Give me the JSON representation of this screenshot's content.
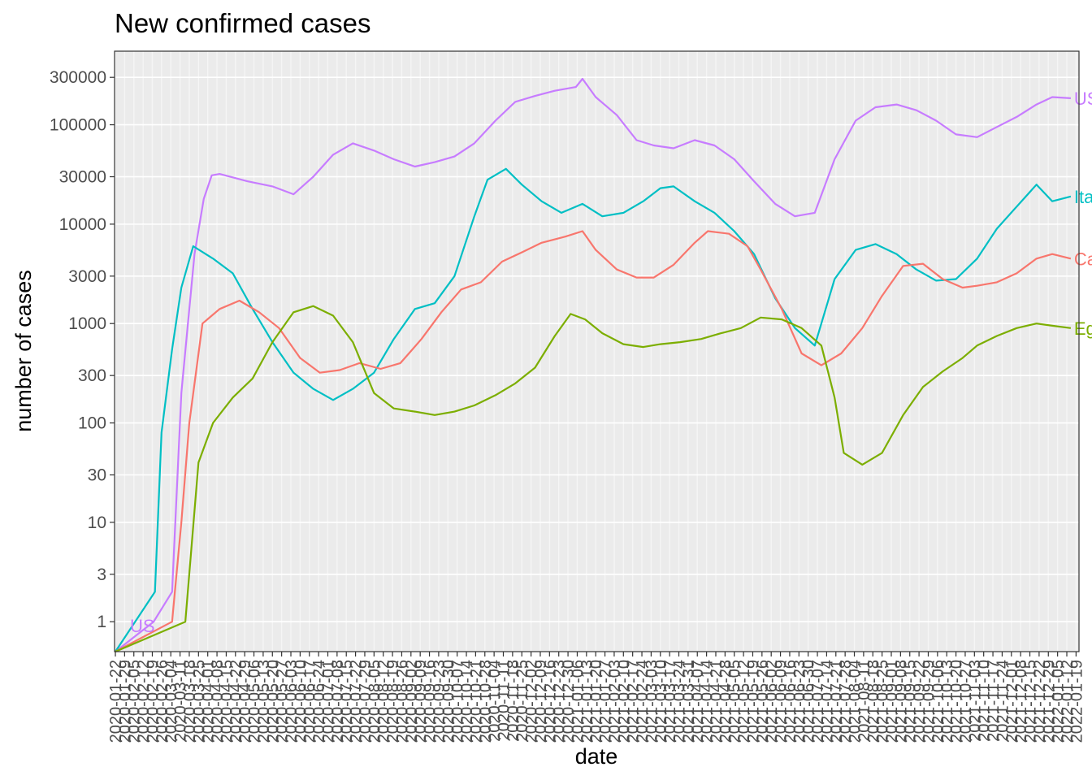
{
  "chart_data": {
    "type": "line",
    "title": "New confirmed cases",
    "xlabel": "date",
    "ylabel": "number of cases",
    "y_scale": "log10",
    "ylim": [
      0.5,
      550000
    ],
    "y_ticks": [
      1,
      3,
      10,
      30,
      100,
      300,
      1000,
      3000,
      10000,
      30000,
      100000,
      300000
    ],
    "y_tick_labels": [
      "1",
      "3",
      "10",
      "30",
      "100",
      "300",
      "1000",
      "3000",
      "10000",
      "30000",
      "100000",
      "300000"
    ],
    "x_range": [
      "2020-01-22",
      "2022-01-20"
    ],
    "x_tick_step_days": 7,
    "x_tick_labels_legibility": "overlapping, illegible",
    "grid": true,
    "legend": "none (series labelled directly on lines)",
    "series": [
      {
        "name": "US",
        "color": "#C77CFF",
        "points": [
          [
            "2020-01-22",
            0.5
          ],
          [
            "2020-02-20",
            1
          ],
          [
            "2020-03-05",
            2
          ],
          [
            "2020-03-12",
            200
          ],
          [
            "2020-03-22",
            5000
          ],
          [
            "2020-03-29",
            18000
          ],
          [
            "2020-04-04",
            31000
          ],
          [
            "2020-04-10",
            32000
          ],
          [
            "2020-05-01",
            27000
          ],
          [
            "2020-05-20",
            24000
          ],
          [
            "2020-06-05",
            20000
          ],
          [
            "2020-06-20",
            30000
          ],
          [
            "2020-07-05",
            50000
          ],
          [
            "2020-07-20",
            65000
          ],
          [
            "2020-08-05",
            55000
          ],
          [
            "2020-08-20",
            45000
          ],
          [
            "2020-09-05",
            38000
          ],
          [
            "2020-09-20",
            42000
          ],
          [
            "2020-10-05",
            48000
          ],
          [
            "2020-10-20",
            65000
          ],
          [
            "2020-11-05",
            110000
          ],
          [
            "2020-11-20",
            170000
          ],
          [
            "2020-12-05",
            195000
          ],
          [
            "2020-12-20",
            220000
          ],
          [
            "2021-01-05",
            240000
          ],
          [
            "2021-01-10",
            290000
          ],
          [
            "2021-01-20",
            190000
          ],
          [
            "2021-02-05",
            125000
          ],
          [
            "2021-02-20",
            70000
          ],
          [
            "2021-03-05",
            62000
          ],
          [
            "2021-03-20",
            58000
          ],
          [
            "2021-04-05",
            70000
          ],
          [
            "2021-04-20",
            62000
          ],
          [
            "2021-05-05",
            45000
          ],
          [
            "2021-05-20",
            27000
          ],
          [
            "2021-06-05",
            16000
          ],
          [
            "2021-06-20",
            12000
          ],
          [
            "2021-07-05",
            13000
          ],
          [
            "2021-07-20",
            45000
          ],
          [
            "2021-08-05",
            110000
          ],
          [
            "2021-08-20",
            150000
          ],
          [
            "2021-09-05",
            160000
          ],
          [
            "2021-09-20",
            140000
          ],
          [
            "2021-10-05",
            110000
          ],
          [
            "2021-10-20",
            80000
          ],
          [
            "2021-11-05",
            75000
          ],
          [
            "2021-11-20",
            95000
          ],
          [
            "2021-12-05",
            120000
          ],
          [
            "2021-12-20",
            160000
          ],
          [
            "2022-01-01",
            190000
          ],
          [
            "2022-01-15",
            185000
          ]
        ],
        "end_label": "US",
        "start_label": "US"
      },
      {
        "name": "Italy",
        "color": "#00BFC4",
        "points": [
          [
            "2020-01-22",
            0.5
          ],
          [
            "2020-02-21",
            2
          ],
          [
            "2020-02-26",
            80
          ],
          [
            "2020-03-05",
            550
          ],
          [
            "2020-03-12",
            2300
          ],
          [
            "2020-03-21",
            6000
          ],
          [
            "2020-04-05",
            4500
          ],
          [
            "2020-04-20",
            3200
          ],
          [
            "2020-05-05",
            1400
          ],
          [
            "2020-05-20",
            650
          ],
          [
            "2020-06-05",
            320
          ],
          [
            "2020-06-20",
            220
          ],
          [
            "2020-07-05",
            170
          ],
          [
            "2020-07-20",
            220
          ],
          [
            "2020-08-05",
            320
          ],
          [
            "2020-08-20",
            700
          ],
          [
            "2020-09-05",
            1400
          ],
          [
            "2020-09-20",
            1600
          ],
          [
            "2020-10-05",
            3000
          ],
          [
            "2020-10-20",
            12000
          ],
          [
            "2020-10-30",
            28000
          ],
          [
            "2020-11-13",
            36000
          ],
          [
            "2020-11-25",
            25000
          ],
          [
            "2020-12-10",
            17000
          ],
          [
            "2020-12-25",
            13000
          ],
          [
            "2021-01-10",
            16000
          ],
          [
            "2021-01-25",
            12000
          ],
          [
            "2021-02-10",
            13000
          ],
          [
            "2021-02-25",
            17000
          ],
          [
            "2021-03-10",
            23000
          ],
          [
            "2021-03-20",
            24000
          ],
          [
            "2021-04-05",
            17000
          ],
          [
            "2021-04-20",
            13000
          ],
          [
            "2021-05-05",
            8500
          ],
          [
            "2021-05-20",
            5000
          ],
          [
            "2021-06-05",
            1800
          ],
          [
            "2021-06-20",
            900
          ],
          [
            "2021-07-05",
            600
          ],
          [
            "2021-07-20",
            2800
          ],
          [
            "2021-08-05",
            5500
          ],
          [
            "2021-08-20",
            6300
          ],
          [
            "2021-09-05",
            5000
          ],
          [
            "2021-09-20",
            3500
          ],
          [
            "2021-10-05",
            2700
          ],
          [
            "2021-10-20",
            2800
          ],
          [
            "2021-11-05",
            4500
          ],
          [
            "2021-11-20",
            9000
          ],
          [
            "2021-12-05",
            15000
          ],
          [
            "2021-12-20",
            25000
          ],
          [
            "2022-01-01",
            17000
          ],
          [
            "2022-01-15",
            19000
          ]
        ],
        "end_label": "Italy"
      },
      {
        "name": "Canada",
        "color": "#F8766D",
        "points": [
          [
            "2020-01-22",
            0.5
          ],
          [
            "2020-03-05",
            1
          ],
          [
            "2020-03-12",
            10
          ],
          [
            "2020-03-18",
            100
          ],
          [
            "2020-03-28",
            1000
          ],
          [
            "2020-04-10",
            1400
          ],
          [
            "2020-04-25",
            1700
          ],
          [
            "2020-05-10",
            1300
          ],
          [
            "2020-05-25",
            900
          ],
          [
            "2020-06-10",
            450
          ],
          [
            "2020-06-25",
            320
          ],
          [
            "2020-07-10",
            340
          ],
          [
            "2020-07-25",
            400
          ],
          [
            "2020-08-10",
            350
          ],
          [
            "2020-08-25",
            400
          ],
          [
            "2020-09-10",
            700
          ],
          [
            "2020-09-25",
            1300
          ],
          [
            "2020-10-10",
            2200
          ],
          [
            "2020-10-25",
            2600
          ],
          [
            "2020-11-10",
            4200
          ],
          [
            "2020-11-25",
            5200
          ],
          [
            "2020-12-10",
            6500
          ],
          [
            "2020-12-28",
            7500
          ],
          [
            "2021-01-10",
            8500
          ],
          [
            "2021-01-20",
            5500
          ],
          [
            "2021-02-05",
            3500
          ],
          [
            "2021-02-20",
            2900
          ],
          [
            "2021-03-05",
            2900
          ],
          [
            "2021-03-20",
            3900
          ],
          [
            "2021-04-05",
            6500
          ],
          [
            "2021-04-15",
            8500
          ],
          [
            "2021-05-01",
            8000
          ],
          [
            "2021-05-15",
            6000
          ],
          [
            "2021-05-25",
            3500
          ],
          [
            "2021-06-10",
            1400
          ],
          [
            "2021-06-25",
            500
          ],
          [
            "2021-07-10",
            380
          ],
          [
            "2021-07-25",
            500
          ],
          [
            "2021-08-10",
            900
          ],
          [
            "2021-08-25",
            1900
          ],
          [
            "2021-09-10",
            3800
          ],
          [
            "2021-09-25",
            4000
          ],
          [
            "2021-10-10",
            2800
          ],
          [
            "2021-10-25",
            2300
          ],
          [
            "2021-11-05",
            2400
          ],
          [
            "2021-11-20",
            2600
          ],
          [
            "2021-12-05",
            3200
          ],
          [
            "2021-12-20",
            4500
          ],
          [
            "2022-01-01",
            5000
          ],
          [
            "2022-01-15",
            4500
          ]
        ],
        "end_label": "Canada"
      },
      {
        "name": "Egypt",
        "color": "#7CAE00",
        "points": [
          [
            "2020-01-22",
            0.5
          ],
          [
            "2020-03-15",
            1
          ],
          [
            "2020-03-25",
            40
          ],
          [
            "2020-04-05",
            100
          ],
          [
            "2020-04-20",
            180
          ],
          [
            "2020-05-05",
            280
          ],
          [
            "2020-05-20",
            650
          ],
          [
            "2020-06-05",
            1300
          ],
          [
            "2020-06-20",
            1500
          ],
          [
            "2020-07-05",
            1200
          ],
          [
            "2020-07-20",
            650
          ],
          [
            "2020-08-05",
            200
          ],
          [
            "2020-08-20",
            140
          ],
          [
            "2020-09-05",
            130
          ],
          [
            "2020-09-20",
            120
          ],
          [
            "2020-10-05",
            130
          ],
          [
            "2020-10-20",
            150
          ],
          [
            "2020-11-05",
            190
          ],
          [
            "2020-11-20",
            250
          ],
          [
            "2020-12-05",
            360
          ],
          [
            "2020-12-20",
            750
          ],
          [
            "2021-01-01",
            1250
          ],
          [
            "2021-01-12",
            1100
          ],
          [
            "2021-01-25",
            800
          ],
          [
            "2021-02-10",
            620
          ],
          [
            "2021-02-25",
            580
          ],
          [
            "2021-03-10",
            620
          ],
          [
            "2021-03-25",
            650
          ],
          [
            "2021-04-10",
            700
          ],
          [
            "2021-04-25",
            800
          ],
          [
            "2021-05-10",
            900
          ],
          [
            "2021-05-25",
            1150
          ],
          [
            "2021-06-10",
            1100
          ],
          [
            "2021-06-25",
            900
          ],
          [
            "2021-07-10",
            600
          ],
          [
            "2021-07-20",
            180
          ],
          [
            "2021-07-27",
            50
          ],
          [
            "2021-08-10",
            38
          ],
          [
            "2021-08-25",
            50
          ],
          [
            "2021-09-10",
            120
          ],
          [
            "2021-09-25",
            230
          ],
          [
            "2021-10-10",
            330
          ],
          [
            "2021-10-25",
            450
          ],
          [
            "2021-11-05",
            600
          ],
          [
            "2021-11-20",
            750
          ],
          [
            "2021-12-05",
            900
          ],
          [
            "2021-12-20",
            1000
          ],
          [
            "2022-01-01",
            950
          ],
          [
            "2022-01-15",
            900
          ]
        ],
        "end_label": "Egypt"
      }
    ]
  }
}
